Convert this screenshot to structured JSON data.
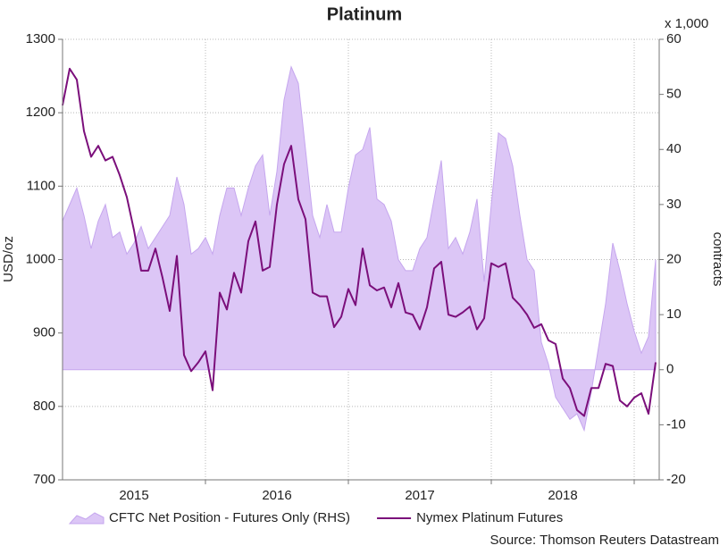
{
  "chart_data": {
    "type": "line",
    "title": "Platinum",
    "y_label": "USD/oz",
    "y2_label": "contracts",
    "y2_unit": "x 1,000",
    "source": "Source: Thomson Reuters Datastream",
    "x": [
      2015,
      2015.05,
      2015.1,
      2015.15,
      2015.2,
      2015.25,
      2015.3,
      2015.35,
      2015.4,
      2015.45,
      2015.5,
      2015.55,
      2015.6,
      2015.65,
      2015.7,
      2015.75,
      2015.8,
      2015.85,
      2015.9,
      2015.95,
      2016,
      2016.05,
      2016.1,
      2016.15,
      2016.2,
      2016.25,
      2016.3,
      2016.35,
      2016.4,
      2016.45,
      2016.5,
      2016.55,
      2016.6,
      2016.65,
      2016.7,
      2016.75,
      2016.8,
      2016.85,
      2016.9,
      2016.95,
      2017,
      2017.05,
      2017.1,
      2017.15,
      2017.2,
      2017.25,
      2017.3,
      2017.35,
      2017.4,
      2017.45,
      2017.5,
      2017.55,
      2017.6,
      2017.65,
      2017.7,
      2017.75,
      2017.8,
      2017.85,
      2017.9,
      2017.95,
      2018,
      2018.05,
      2018.1,
      2018.15,
      2018.2,
      2018.25,
      2018.3,
      2018.35,
      2018.4,
      2018.45,
      2018.5,
      2018.55,
      2018.6,
      2018.65,
      2018.7,
      2018.75,
      2018.8,
      2018.85,
      2018.9,
      2018.95,
      2019,
      2019.05,
      2019.1,
      2019.15
    ],
    "series": [
      {
        "name": "CFTC Net Position - Futures Only (RHS)",
        "kind": "area",
        "axis": "y2",
        "color": "#dcc6f6",
        "edge": "#c5a6ee",
        "values": [
          27,
          30,
          33,
          28,
          22,
          27,
          30,
          24,
          25,
          21,
          23,
          26,
          22,
          24,
          26,
          28,
          35,
          30,
          21,
          22,
          24,
          21,
          28,
          33,
          33,
          28,
          33,
          37,
          39,
          28,
          36,
          49,
          55,
          52,
          40,
          28,
          24,
          30,
          25,
          25,
          33,
          39,
          40,
          44,
          31,
          30,
          27,
          20,
          18,
          18,
          22,
          24,
          31,
          38,
          22,
          24,
          21,
          25,
          31,
          16,
          30,
          43,
          42,
          37,
          28,
          20,
          18,
          5,
          1,
          -5,
          -7,
          -9,
          -8,
          -11,
          -4,
          4,
          12,
          23,
          18,
          12,
          7,
          3,
          6,
          20
        ]
      },
      {
        "name": "Nymex Platinum Futures",
        "kind": "line",
        "axis": "y",
        "color": "#7b0f7b",
        "values": [
          1210,
          1260,
          1245,
          1175,
          1140,
          1155,
          1135,
          1140,
          1115,
          1085,
          1040,
          985,
          985,
          1015,
          975,
          930,
          1005,
          870,
          848,
          860,
          875,
          822,
          955,
          932,
          982,
          955,
          1025,
          1052,
          985,
          990,
          1075,
          1130,
          1155,
          1082,
          1055,
          955,
          950,
          950,
          908,
          922,
          960,
          938,
          1015,
          965,
          958,
          962,
          935,
          968,
          928,
          925,
          905,
          935,
          988,
          997,
          925,
          922,
          928,
          936,
          905,
          920,
          995,
          990,
          995,
          948,
          938,
          925,
          907,
          912,
          890,
          885,
          838,
          825,
          795,
          787,
          825,
          825,
          858,
          855,
          808,
          800,
          812,
          818,
          790,
          860
        ]
      }
    ],
    "xlim": [
      2015,
      2019.175
    ],
    "xticks": [
      {
        "value": 2015.5,
        "label": "2015"
      },
      {
        "value": 2016.5,
        "label": "2016"
      },
      {
        "value": 2017.5,
        "label": "2017"
      },
      {
        "value": 2018.5,
        "label": "2018"
      }
    ],
    "xgrid": [
      2016,
      2017,
      2018,
      2019
    ],
    "ylim": [
      700,
      1300
    ],
    "yticks": [
      700,
      800,
      900,
      1000,
      1100,
      1200,
      1300
    ],
    "y2lim": [
      -20,
      60
    ],
    "y2ticks": [
      -20,
      -10,
      0,
      10,
      20,
      30,
      40,
      50,
      60
    ],
    "grid": true,
    "legend": "bottom"
  }
}
